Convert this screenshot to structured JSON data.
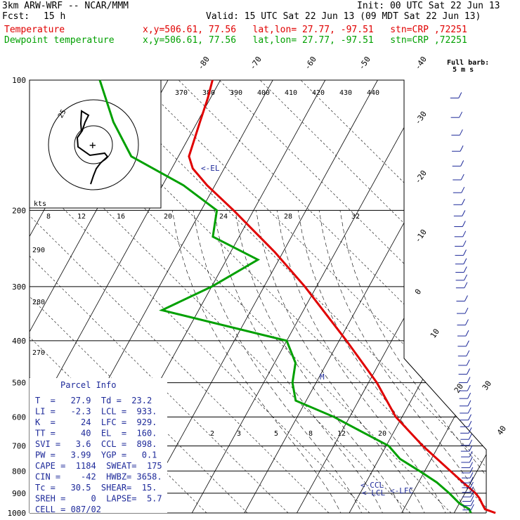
{
  "header": {
    "model": "3km ARW-WRF -- NCAR/MMM",
    "init": "Init: 00 UTC Sat 22 Jun 13",
    "fcst_label": "Fcst:",
    "fcst_value": "15 h",
    "valid": "Valid: 15 UTC Sat 22 Jun 13 (09 MDT Sat 22 Jun 13)",
    "temp_label": "Temperature",
    "temp_info": "x,y=506.61, 77.56   lat,lon= 27.77, -97.51   stn=CRP ,72251",
    "dew_label": "Dewpoint temperature",
    "dew_info": "x,y=506.61, 77.56   lat,lon= 27.77, -97.51   stn=CRP ,72251"
  },
  "barb_legend": {
    "line1": "Full barb:",
    "line2": "5 m s"
  },
  "colors": {
    "temperature": "#e00000",
    "dewpoint": "#00a000",
    "parcel": "#1e2a9a",
    "grid": "#000000"
  },
  "pressure_labels": [
    "100",
    "200",
    "300",
    "400",
    "500",
    "600",
    "700",
    "800",
    "900",
    "1000"
  ],
  "isotherm_labels_top": [
    "-80",
    "-70",
    "-60",
    "-50",
    "-40"
  ],
  "isotherm_labels_right": [
    "-30",
    "-20",
    "-10",
    "0",
    "10",
    "20",
    "30",
    "40"
  ],
  "theta_e_labels": [
    "370",
    "380",
    "390",
    "400",
    "410",
    "420",
    "430",
    "440"
  ],
  "mixing_ratio_labels": [
    "2",
    "3",
    "5",
    "8",
    "12",
    "20"
  ],
  "theta_labels": [
    "290",
    "280",
    "270"
  ],
  "hodograph": {
    "speed_unit": "kts",
    "ring_label": "25",
    "speed_labels": [
      "8",
      "12",
      "16",
      "20",
      "24",
      "28",
      "32"
    ]
  },
  "markers": {
    "el": "<-EL",
    "m": "M",
    "ccl": "<-CCL",
    "lcl": "<-LCL",
    "lfc": "<-LFC"
  },
  "parcel_info": {
    "title": "Parcel Info",
    "lines": [
      "T  =   27.9  Td =  23.2",
      "LI =   -2.3  LCL =  933.",
      "K  =     24  LFC =  929.",
      "TT =     40  EL  =  160.",
      "SVI =   3.6  CCL =  898.",
      "PW =   3.99  YGP =   0.1",
      "CAPE =  1184  SWEAT=  175",
      "CIN =    -42  HWBZ= 3658.",
      "Tc =   30.5  SHEAR=  15.",
      "SREH =     0  LAPSE=  5.7",
      "CELL = 087/02"
    ]
  },
  "chart_data": {
    "type": "line",
    "title": "",
    "xlabel": "",
    "ylabel": "",
    "y_axis": "pressure (hPa), log scale",
    "ylim": [
      1000,
      100
    ],
    "series": [
      {
        "name": "Temperature",
        "color": "#e00000",
        "pressure": [
          1000,
          980,
          950,
          925,
          900,
          850,
          800,
          700,
          600,
          500,
          400,
          300,
          250,
          200,
          175,
          160,
          150,
          125,
          110,
          100
        ],
        "values": [
          27.9,
          25.5,
          24.3,
          23.3,
          22.0,
          18.5,
          14.9,
          7.0,
          -1.2,
          -8.4,
          -18.6,
          -32.2,
          -41.5,
          -53.8,
          -61.5,
          -66.0,
          -68.0,
          -69.5,
          -70.5,
          -71.5
        ]
      },
      {
        "name": "Dewpoint temperature",
        "color": "#00a000",
        "pressure": [
          1000,
          980,
          950,
          925,
          900,
          850,
          800,
          750,
          700,
          650,
          600,
          550,
          500,
          450,
          400,
          340,
          300,
          260,
          230,
          200,
          175,
          150,
          125,
          100
        ],
        "values": [
          23.2,
          22.5,
          20.0,
          18.5,
          17.0,
          13.5,
          9.0,
          4.0,
          0.5,
          -6.0,
          -13.0,
          -22.0,
          -24.5,
          -26.0,
          -30.0,
          -57.0,
          -50.0,
          -44.0,
          -55.0,
          -57.0,
          -66.0,
          -79.0,
          -86.0,
          -93.0
        ]
      }
    ]
  }
}
